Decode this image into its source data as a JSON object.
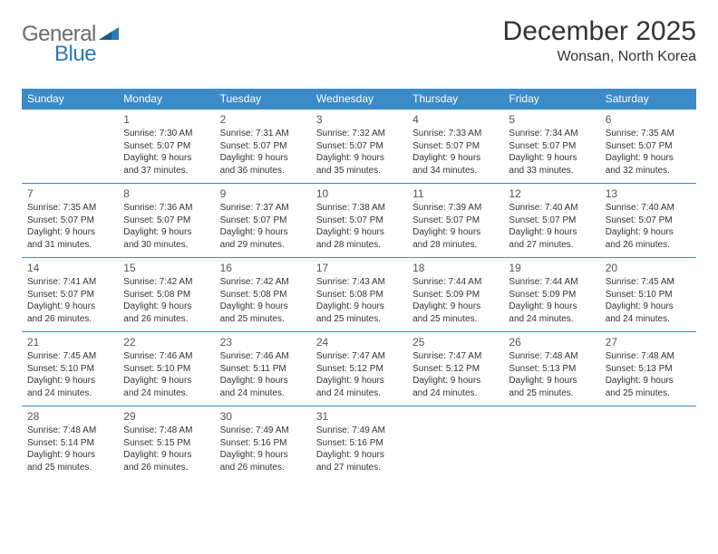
{
  "brand": {
    "part1": "General",
    "part2": "Blue"
  },
  "title": "December 2025",
  "location": "Wonsan, North Korea",
  "colors": {
    "header_bg": "#3b8bc8",
    "header_text": "#ffffff",
    "cell_border": "#3b8bc8",
    "text": "#333333",
    "logo_gray": "#6b6b6b",
    "logo_blue": "#2a7ab8",
    "background": "#ffffff"
  },
  "dayHeaders": [
    "Sunday",
    "Monday",
    "Tuesday",
    "Wednesday",
    "Thursday",
    "Friday",
    "Saturday"
  ],
  "weeks": [
    [
      null,
      {
        "n": "1",
        "sr": "7:30 AM",
        "ss": "5:07 PM",
        "dl": "9 hours and 37 minutes."
      },
      {
        "n": "2",
        "sr": "7:31 AM",
        "ss": "5:07 PM",
        "dl": "9 hours and 36 minutes."
      },
      {
        "n": "3",
        "sr": "7:32 AM",
        "ss": "5:07 PM",
        "dl": "9 hours and 35 minutes."
      },
      {
        "n": "4",
        "sr": "7:33 AM",
        "ss": "5:07 PM",
        "dl": "9 hours and 34 minutes."
      },
      {
        "n": "5",
        "sr": "7:34 AM",
        "ss": "5:07 PM",
        "dl": "9 hours and 33 minutes."
      },
      {
        "n": "6",
        "sr": "7:35 AM",
        "ss": "5:07 PM",
        "dl": "9 hours and 32 minutes."
      }
    ],
    [
      {
        "n": "7",
        "sr": "7:35 AM",
        "ss": "5:07 PM",
        "dl": "9 hours and 31 minutes."
      },
      {
        "n": "8",
        "sr": "7:36 AM",
        "ss": "5:07 PM",
        "dl": "9 hours and 30 minutes."
      },
      {
        "n": "9",
        "sr": "7:37 AM",
        "ss": "5:07 PM",
        "dl": "9 hours and 29 minutes."
      },
      {
        "n": "10",
        "sr": "7:38 AM",
        "ss": "5:07 PM",
        "dl": "9 hours and 28 minutes."
      },
      {
        "n": "11",
        "sr": "7:39 AM",
        "ss": "5:07 PM",
        "dl": "9 hours and 28 minutes."
      },
      {
        "n": "12",
        "sr": "7:40 AM",
        "ss": "5:07 PM",
        "dl": "9 hours and 27 minutes."
      },
      {
        "n": "13",
        "sr": "7:40 AM",
        "ss": "5:07 PM",
        "dl": "9 hours and 26 minutes."
      }
    ],
    [
      {
        "n": "14",
        "sr": "7:41 AM",
        "ss": "5:07 PM",
        "dl": "9 hours and 26 minutes."
      },
      {
        "n": "15",
        "sr": "7:42 AM",
        "ss": "5:08 PM",
        "dl": "9 hours and 26 minutes."
      },
      {
        "n": "16",
        "sr": "7:42 AM",
        "ss": "5:08 PM",
        "dl": "9 hours and 25 minutes."
      },
      {
        "n": "17",
        "sr": "7:43 AM",
        "ss": "5:08 PM",
        "dl": "9 hours and 25 minutes."
      },
      {
        "n": "18",
        "sr": "7:44 AM",
        "ss": "5:09 PM",
        "dl": "9 hours and 25 minutes."
      },
      {
        "n": "19",
        "sr": "7:44 AM",
        "ss": "5:09 PM",
        "dl": "9 hours and 24 minutes."
      },
      {
        "n": "20",
        "sr": "7:45 AM",
        "ss": "5:10 PM",
        "dl": "9 hours and 24 minutes."
      }
    ],
    [
      {
        "n": "21",
        "sr": "7:45 AM",
        "ss": "5:10 PM",
        "dl": "9 hours and 24 minutes."
      },
      {
        "n": "22",
        "sr": "7:46 AM",
        "ss": "5:10 PM",
        "dl": "9 hours and 24 minutes."
      },
      {
        "n": "23",
        "sr": "7:46 AM",
        "ss": "5:11 PM",
        "dl": "9 hours and 24 minutes."
      },
      {
        "n": "24",
        "sr": "7:47 AM",
        "ss": "5:12 PM",
        "dl": "9 hours and 24 minutes."
      },
      {
        "n": "25",
        "sr": "7:47 AM",
        "ss": "5:12 PM",
        "dl": "9 hours and 24 minutes."
      },
      {
        "n": "26",
        "sr": "7:48 AM",
        "ss": "5:13 PM",
        "dl": "9 hours and 25 minutes."
      },
      {
        "n": "27",
        "sr": "7:48 AM",
        "ss": "5:13 PM",
        "dl": "9 hours and 25 minutes."
      }
    ],
    [
      {
        "n": "28",
        "sr": "7:48 AM",
        "ss": "5:14 PM",
        "dl": "9 hours and 25 minutes."
      },
      {
        "n": "29",
        "sr": "7:48 AM",
        "ss": "5:15 PM",
        "dl": "9 hours and 26 minutes."
      },
      {
        "n": "30",
        "sr": "7:49 AM",
        "ss": "5:16 PM",
        "dl": "9 hours and 26 minutes."
      },
      {
        "n": "31",
        "sr": "7:49 AM",
        "ss": "5:16 PM",
        "dl": "9 hours and 27 minutes."
      },
      null,
      null,
      null
    ]
  ],
  "labels": {
    "sunrise": "Sunrise:",
    "sunset": "Sunset:",
    "daylight": "Daylight:"
  }
}
